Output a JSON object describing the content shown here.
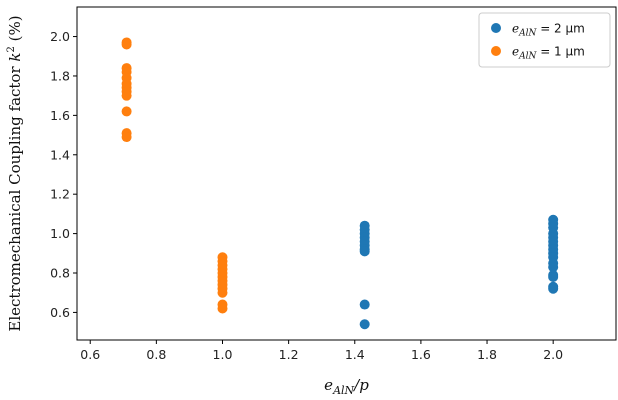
{
  "chart_data": {
    "type": "scatter",
    "xlabel": {
      "main": "e",
      "sub": "AlN",
      "rest": "/p"
    },
    "ylabel": {
      "main": "Electromechanical Coupling factor ",
      "sym": "k",
      "sup": "2",
      "unit": " (%)"
    },
    "xlim": [
      0.56,
      2.19
    ],
    "ylim": [
      0.46,
      2.15
    ],
    "xticks": [
      0.6,
      0.8,
      1.0,
      1.2,
      1.4,
      1.6,
      1.8,
      2.0
    ],
    "xtick_labels": [
      "0.6",
      "0.8",
      "1.0",
      "1.2",
      "1.4",
      "1.6",
      "1.8",
      "2.0"
    ],
    "yticks": [
      0.6,
      0.8,
      1.0,
      1.2,
      1.4,
      1.6,
      1.8,
      2.0
    ],
    "ytick_labels": [
      "0.6",
      "0.8",
      "1.0",
      "1.2",
      "1.4",
      "1.6",
      "1.8",
      "2.0"
    ],
    "grid": false,
    "legend_position": "top-right",
    "series": [
      {
        "name": "e_AlN = 2 µm",
        "legend": {
          "main": "e",
          "sub": "AlN",
          "rest": " = 2 µm"
        },
        "color": "#1f77b4",
        "points": [
          [
            1.43,
            1.04
          ],
          [
            1.43,
            1.02
          ],
          [
            1.43,
            1.0
          ],
          [
            1.43,
            0.98
          ],
          [
            1.43,
            0.96
          ],
          [
            1.43,
            0.94
          ],
          [
            1.43,
            0.92
          ],
          [
            1.43,
            0.91
          ],
          [
            1.43,
            0.64
          ],
          [
            1.43,
            0.54
          ],
          [
            2.0,
            1.07
          ],
          [
            2.0,
            1.05
          ],
          [
            2.0,
            1.03
          ],
          [
            2.0,
            1.0
          ],
          [
            2.0,
            0.98
          ],
          [
            2.0,
            0.96
          ],
          [
            2.0,
            0.94
          ],
          [
            2.0,
            0.92
          ],
          [
            2.0,
            0.9
          ],
          [
            2.0,
            0.88
          ],
          [
            2.0,
            0.85
          ],
          [
            2.0,
            0.83
          ],
          [
            2.0,
            0.79
          ],
          [
            2.0,
            0.78
          ],
          [
            2.0,
            0.73
          ],
          [
            2.0,
            0.72
          ]
        ]
      },
      {
        "name": "e_AlN = 1 µm",
        "legend": {
          "main": "e",
          "sub": "AlN",
          "rest": " = 1 µm"
        },
        "color": "#ff7f0e",
        "points": [
          [
            0.71,
            1.97
          ],
          [
            0.71,
            1.96
          ],
          [
            0.71,
            1.84
          ],
          [
            0.71,
            1.82
          ],
          [
            0.71,
            1.79
          ],
          [
            0.71,
            1.76
          ],
          [
            0.71,
            1.74
          ],
          [
            0.71,
            1.72
          ],
          [
            0.71,
            1.7
          ],
          [
            0.71,
            1.62
          ],
          [
            0.71,
            1.51
          ],
          [
            0.71,
            1.49
          ],
          [
            1.0,
            0.88
          ],
          [
            1.0,
            0.86
          ],
          [
            1.0,
            0.84
          ],
          [
            1.0,
            0.82
          ],
          [
            1.0,
            0.8
          ],
          [
            1.0,
            0.78
          ],
          [
            1.0,
            0.76
          ],
          [
            1.0,
            0.74
          ],
          [
            1.0,
            0.72
          ],
          [
            1.0,
            0.7
          ],
          [
            1.0,
            0.64
          ],
          [
            1.0,
            0.62
          ]
        ]
      }
    ]
  }
}
